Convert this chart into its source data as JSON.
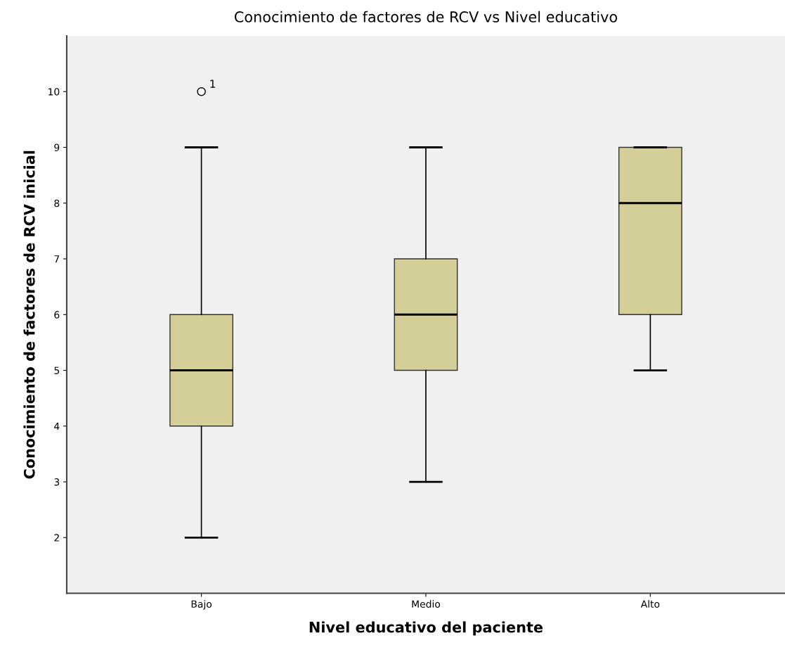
{
  "chart_data": {
    "type": "box",
    "title": "Conocimiento de factores de RCV vs Nivel educativo",
    "xlabel": "Nivel educativo del paciente",
    "ylabel": "Conocimiento de factores de RCV inicial",
    "categories": [
      "Bajo",
      "Medio",
      "Alto"
    ],
    "color": "#d4cf98",
    "boxes": [
      {
        "low": 2,
        "q1": 4,
        "median": 5,
        "q3": 6,
        "high": 9,
        "outliers": [
          10
        ]
      },
      {
        "low": 3,
        "q1": 5,
        "median": 6,
        "q3": 7,
        "high": 9
      },
      {
        "low": 5,
        "q1": 6,
        "median": 8,
        "q3": 9,
        "high": 9
      }
    ],
    "ylim": [
      1,
      11
    ],
    "yticks": [
      2,
      3,
      4,
      5,
      6,
      7,
      8,
      9,
      10
    ],
    "annotations": [
      "1"
    ],
    "grid": false,
    "legend": false
  }
}
